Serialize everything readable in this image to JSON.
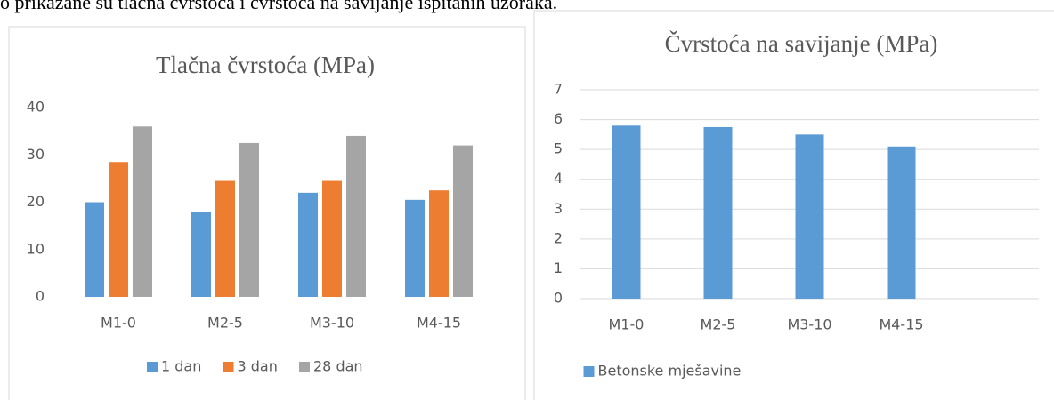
{
  "text": "o prikazane su tlačna čvrstoća i čvrstoća na savijanje ispitanih uzoraka.",
  "chart_data": [
    {
      "type": "bar",
      "title": "Tlačna čvrstoća (MPa)",
      "categories": [
        "M1-0",
        "M2-5",
        "M3-10",
        "M4-15"
      ],
      "series": [
        {
          "name": "1 dan",
          "color": "#5b9bd5",
          "values": [
            20,
            18,
            22,
            20.5
          ]
        },
        {
          "name": "3 dan",
          "color": "#ed7d31",
          "values": [
            28.5,
            24.5,
            24.5,
            22.5
          ]
        },
        {
          "name": "28 dan",
          "color": "#a5a5a5",
          "values": [
            36,
            32.5,
            34,
            32
          ]
        }
      ],
      "ylim": [
        0,
        40
      ],
      "yticks": [
        0,
        10,
        20,
        30,
        40
      ],
      "grid": false,
      "legend": "bottom"
    },
    {
      "type": "bar",
      "title": "Čvrstoća na savijanje (MPa)",
      "categories": [
        "M1-0",
        "M2-5",
        "M3-10",
        "M4-15",
        null
      ],
      "series": [
        {
          "name": "Betonske mješavine",
          "color": "#5b9bd5",
          "values": [
            5.8,
            5.75,
            5.5,
            5.1,
            null
          ]
        }
      ],
      "ylim": [
        0,
        7
      ],
      "yticks": [
        0,
        1,
        2,
        3,
        4,
        5,
        6,
        7
      ],
      "grid": true,
      "legend": "bottom"
    }
  ]
}
